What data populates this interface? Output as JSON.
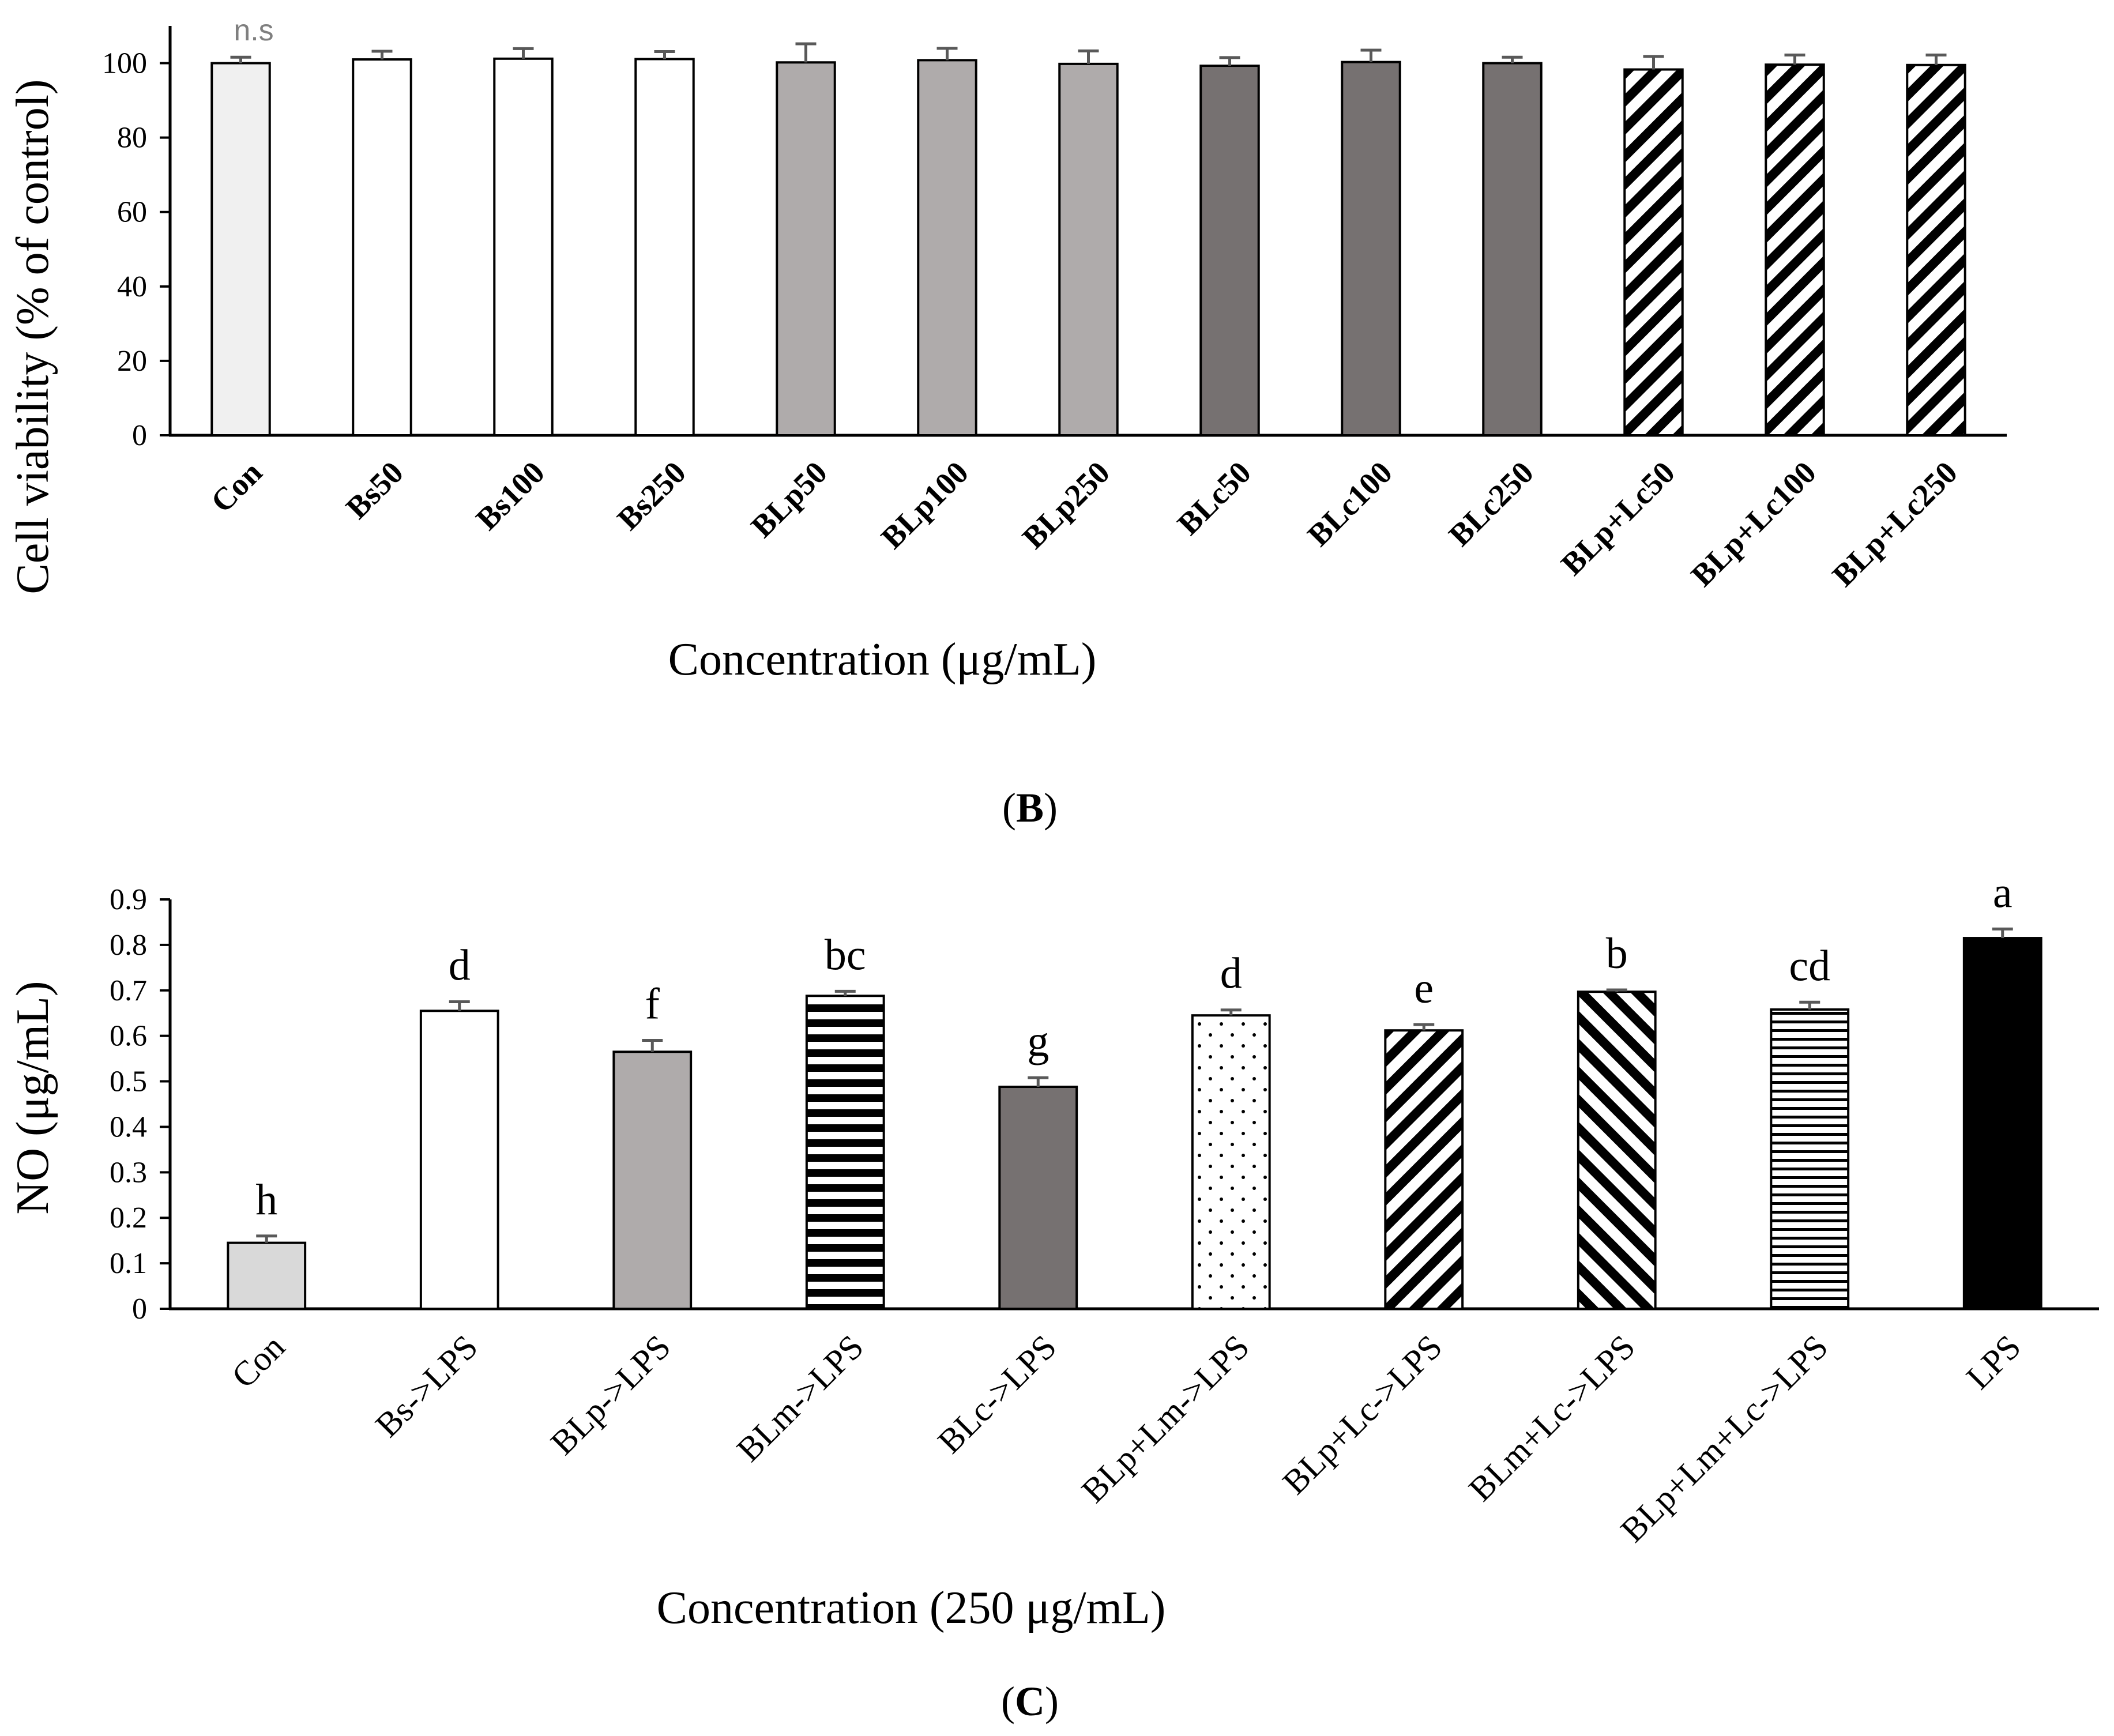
{
  "figure": {
    "panel_b_label": "(B)",
    "panel_b_letter": "B",
    "panel_c_label": "(C)",
    "panel_c_letter": "C"
  },
  "colors": {
    "axis": "#000000",
    "error_bar": "#595959",
    "ns_text": "#7f7f7f",
    "light_gray": "#f0f0f0",
    "lighter_gray": "#d9d9d9",
    "mid_gray": "#afabab",
    "dark_gray": "#767171",
    "white": "#ffffff",
    "black": "#000000"
  },
  "chart_data": [
    {
      "id": "panel-b",
      "type": "bar",
      "title": "",
      "xlabel": "Concentration (μg/mL)",
      "ylabel": "Cell viability (% of control)",
      "ylim": [
        0,
        110
      ],
      "yticks": [
        0,
        20,
        40,
        60,
        80,
        100
      ],
      "grid": false,
      "legend": "none",
      "annotation": "n.s",
      "categories": [
        "Con",
        "Bs50",
        "Bs100",
        "Bs250",
        "BLp50",
        "BLp100",
        "BLp250",
        "BLc50",
        "BLc100",
        "BLc250",
        "BLp+Lc50",
        "BLp+Lc100",
        "BLp+Lc250"
      ],
      "values": [
        100,
        101,
        101.2,
        101.1,
        100.2,
        100.8,
        99.8,
        99.3,
        100.3,
        100,
        98.3,
        99.6,
        99.5
      ],
      "errors": [
        1.6,
        2.2,
        2.7,
        2,
        5,
        3.2,
        3.5,
        2.2,
        3.2,
        1.6,
        3.5,
        2.6,
        2.7
      ],
      "fills": [
        "light_gray",
        "white",
        "white",
        "white",
        "mid_gray",
        "mid_gray",
        "mid_gray",
        "dark_gray",
        "dark_gray",
        "dark_gray",
        "diag_down_thick",
        "diag_down_thick",
        "diag_down_thick"
      ]
    },
    {
      "id": "panel-c",
      "type": "bar",
      "title": "",
      "xlabel": "Concentration (250 μg/mL)",
      "ylabel": "NO (μg/mL)",
      "ylim": [
        0,
        0.9
      ],
      "yticks": [
        0,
        0.1,
        0.2,
        0.3,
        0.4,
        0.5,
        0.6,
        0.7,
        0.8,
        0.9
      ],
      "grid": false,
      "legend": "none",
      "categories": [
        "Con",
        "Bs->LPS",
        "BLp->LPS",
        "BLm->LPS",
        "BLc->LPS",
        "BLp+Lm->LPS",
        "BLp+Lc->LPS",
        "BLm+Lc->LPS",
        "BLp+Lm+Lc->LPS",
        "LPS"
      ],
      "values": [
        0.145,
        0.655,
        0.565,
        0.688,
        0.488,
        0.645,
        0.612,
        0.697,
        0.658,
        0.815
      ],
      "errors": [
        0.015,
        0.02,
        0.025,
        0.01,
        0.02,
        0.012,
        0.013,
        0.004,
        0.016,
        0.02
      ],
      "labels": [
        "h",
        "d",
        "f",
        "bc",
        "g",
        "d",
        "e",
        "b",
        "cd",
        "a"
      ],
      "fills": [
        "lighter_gray",
        "white",
        "mid_gray",
        "hstripe_thick",
        "dark_gray",
        "dots",
        "diag_down_thick",
        "diag_up_thick",
        "hstripe_thin",
        "black"
      ]
    }
  ]
}
